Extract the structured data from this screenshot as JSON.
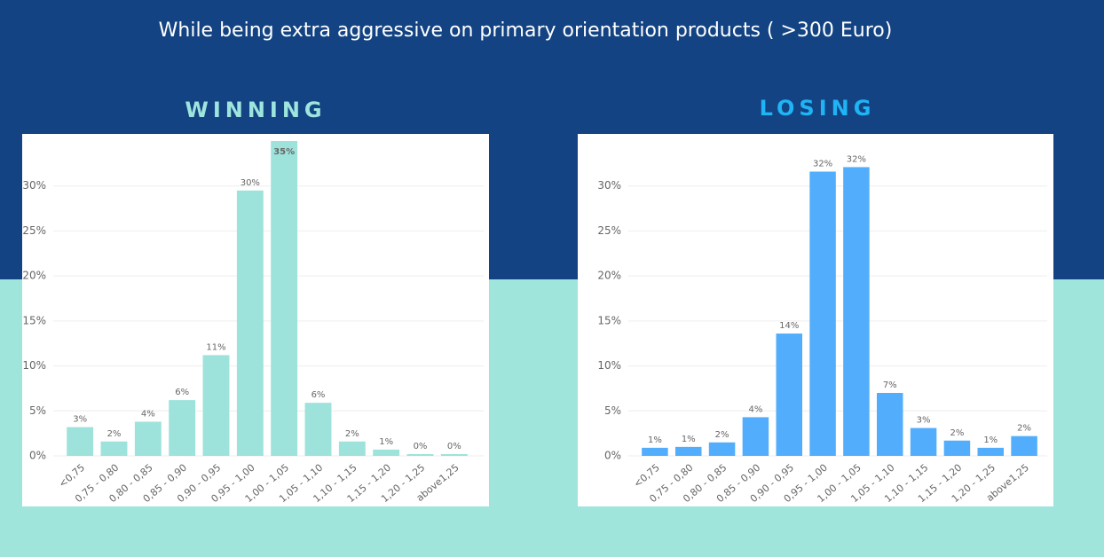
{
  "header": {
    "subtitle": "While being extra aggressive on primary orientation products ( >300 Euro)"
  },
  "chart_data": [
    {
      "type": "bar",
      "title": "WINNING",
      "title_color": "#9ee5de",
      "color": "#9de3db",
      "categories": [
        "<0,75",
        "0,75 - 0,80",
        "0,80 - 0,85",
        "0,85 - 0,90",
        "0,90 - 0,95",
        "0,95 - 1,00",
        "1,00 - 1,05",
        "1,05 - 1,10",
        "1,10 - 1,15",
        "1,15 - 1,20",
        "1,20 - 1,25",
        "above1,25"
      ],
      "values": [
        3.2,
        1.6,
        3.8,
        6.2,
        11.2,
        29.5,
        35,
        5.9,
        1.6,
        0.7,
        0.2,
        0.2
      ],
      "value_labels": [
        "3%",
        "2%",
        "4%",
        "6%",
        "11%",
        "30%",
        "35%",
        "6%",
        "2%",
        "1%",
        "0%",
        "0%"
      ],
      "ylim": [
        0,
        35
      ],
      "yticks": [
        {
          "value": 0,
          "label": "0%"
        },
        {
          "value": 5,
          "label": "5%"
        },
        {
          "value": 10,
          "label": "10%"
        },
        {
          "value": 15,
          "label": "15%"
        },
        {
          "value": 20,
          "label": "20%"
        },
        {
          "value": 25,
          "label": "25%"
        },
        {
          "value": 30,
          "label": "30%"
        }
      ],
      "grid": true
    },
    {
      "type": "bar",
      "title": "LOSING",
      "title_color": "#1fb4f5",
      "color": "#52aefc",
      "categories": [
        "<0,75",
        "0,75 - 0,80",
        "0,80 - 0,85",
        "0,85 - 0,90",
        "0,90 - 0,95",
        "0,95 - 1,00",
        "1,00 - 1,05",
        "1,05 - 1,10",
        "1,10 - 1,15",
        "1,15 - 1,20",
        "1,20 - 1,25",
        "above1,25"
      ],
      "values": [
        0.9,
        1.0,
        1.5,
        4.3,
        13.6,
        31.6,
        32.1,
        7.0,
        3.1,
        1.7,
        0.9,
        2.2
      ],
      "value_labels": [
        "1%",
        "1%",
        "2%",
        "4%",
        "14%",
        "32%",
        "32%",
        "7%",
        "3%",
        "2%",
        "1%",
        "2%"
      ],
      "ylim": [
        0,
        35
      ],
      "yticks": [
        {
          "value": 0,
          "label": "0%"
        },
        {
          "value": 5,
          "label": "5%"
        },
        {
          "value": 10,
          "label": "10%"
        },
        {
          "value": 15,
          "label": "15%"
        },
        {
          "value": 20,
          "label": "20%"
        },
        {
          "value": 25,
          "label": "25%"
        },
        {
          "value": 30,
          "label": "30%"
        }
      ],
      "grid": true
    }
  ]
}
